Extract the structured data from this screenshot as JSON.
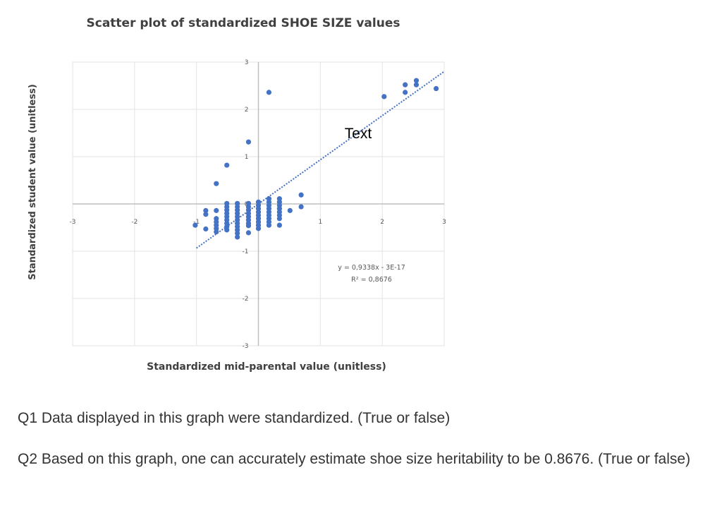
{
  "chart_data": {
    "type": "scatter",
    "title": "Scatter plot of standardized SHOE SIZE values",
    "xlabel": "Standardized mid-parental value (unitless)",
    "ylabel": "Standardized student value (unitless)",
    "xlim": [
      -3,
      3
    ],
    "ylim": [
      -3,
      3
    ],
    "xticks": [
      "-3",
      "-2",
      "-1",
      "0",
      "1",
      "2",
      "3"
    ],
    "yticks": [
      "-3",
      "-2",
      "-1",
      "0",
      "1",
      "2",
      "3"
    ],
    "grid": true,
    "point_color": "#4472c4",
    "trendline": {
      "slope": 0.9338,
      "intercept": 0,
      "x_range": [
        -1,
        3
      ],
      "style": "dotted",
      "color": "#4472c4"
    },
    "equation": "y = 0,9338x - 3E-17",
    "r_squared": "R² = 0,8676",
    "annotation": "Text",
    "points": [
      [
        -1.02,
        -0.45
      ],
      [
        -0.85,
        -0.14
      ],
      [
        -0.85,
        -0.22
      ],
      [
        -0.85,
        -0.53
      ],
      [
        -0.68,
        0.43
      ],
      [
        -0.68,
        -0.14
      ],
      [
        -0.68,
        -0.31
      ],
      [
        -0.68,
        -0.38
      ],
      [
        -0.68,
        -0.45
      ],
      [
        -0.68,
        -0.52
      ],
      [
        -0.68,
        -0.59
      ],
      [
        -0.51,
        0.82
      ],
      [
        -0.51,
        0.01
      ],
      [
        -0.51,
        -0.06
      ],
      [
        -0.51,
        -0.13
      ],
      [
        -0.51,
        -0.2
      ],
      [
        -0.51,
        -0.27
      ],
      [
        -0.51,
        -0.34
      ],
      [
        -0.51,
        -0.41
      ],
      [
        -0.51,
        -0.48
      ],
      [
        -0.51,
        -0.55
      ],
      [
        -0.34,
        0.01
      ],
      [
        -0.34,
        -0.06
      ],
      [
        -0.34,
        -0.13
      ],
      [
        -0.34,
        -0.2
      ],
      [
        -0.34,
        -0.27
      ],
      [
        -0.34,
        -0.34
      ],
      [
        -0.34,
        -0.41
      ],
      [
        -0.34,
        -0.48
      ],
      [
        -0.34,
        -0.55
      ],
      [
        -0.34,
        -0.62
      ],
      [
        -0.34,
        -0.7
      ],
      [
        -0.16,
        1.31
      ],
      [
        -0.16,
        0.01
      ],
      [
        -0.16,
        -0.06
      ],
      [
        -0.16,
        -0.13
      ],
      [
        -0.16,
        -0.2
      ],
      [
        -0.16,
        -0.27
      ],
      [
        -0.16,
        -0.34
      ],
      [
        -0.16,
        -0.41
      ],
      [
        -0.16,
        -0.46
      ],
      [
        -0.16,
        -0.61
      ],
      [
        0,
        0.04
      ],
      [
        0,
        -0.03
      ],
      [
        0,
        -0.1
      ],
      [
        0,
        -0.17
      ],
      [
        0,
        -0.24
      ],
      [
        0,
        -0.31
      ],
      [
        0,
        -0.38
      ],
      [
        0,
        -0.45
      ],
      [
        0,
        -0.52
      ],
      [
        0.17,
        2.36
      ],
      [
        0.17,
        0.11
      ],
      [
        0.17,
        0.04
      ],
      [
        0.17,
        -0.03
      ],
      [
        0.17,
        -0.1
      ],
      [
        0.17,
        -0.17
      ],
      [
        0.17,
        -0.24
      ],
      [
        0.17,
        -0.31
      ],
      [
        0.17,
        -0.38
      ],
      [
        0.17,
        -0.45
      ],
      [
        0.34,
        0.11
      ],
      [
        0.34,
        0.04
      ],
      [
        0.34,
        -0.03
      ],
      [
        0.34,
        -0.1
      ],
      [
        0.34,
        -0.17
      ],
      [
        0.34,
        -0.24
      ],
      [
        0.34,
        -0.31
      ],
      [
        0.34,
        -0.45
      ],
      [
        0.51,
        -0.14
      ],
      [
        0.69,
        0.19
      ],
      [
        0.69,
        -0.06
      ],
      [
        2.03,
        2.27
      ],
      [
        2.37,
        2.52
      ],
      [
        2.37,
        2.36
      ],
      [
        2.55,
        2.61
      ],
      [
        2.55,
        2.52
      ],
      [
        2.87,
        2.44
      ]
    ]
  },
  "questions": [
    "Q1 Data displayed in this graph were standardized. (True or false)",
    "Q2 Based on this graph, one can accurately estimate shoe size heritability to be 0.8676. (True or false)"
  ]
}
